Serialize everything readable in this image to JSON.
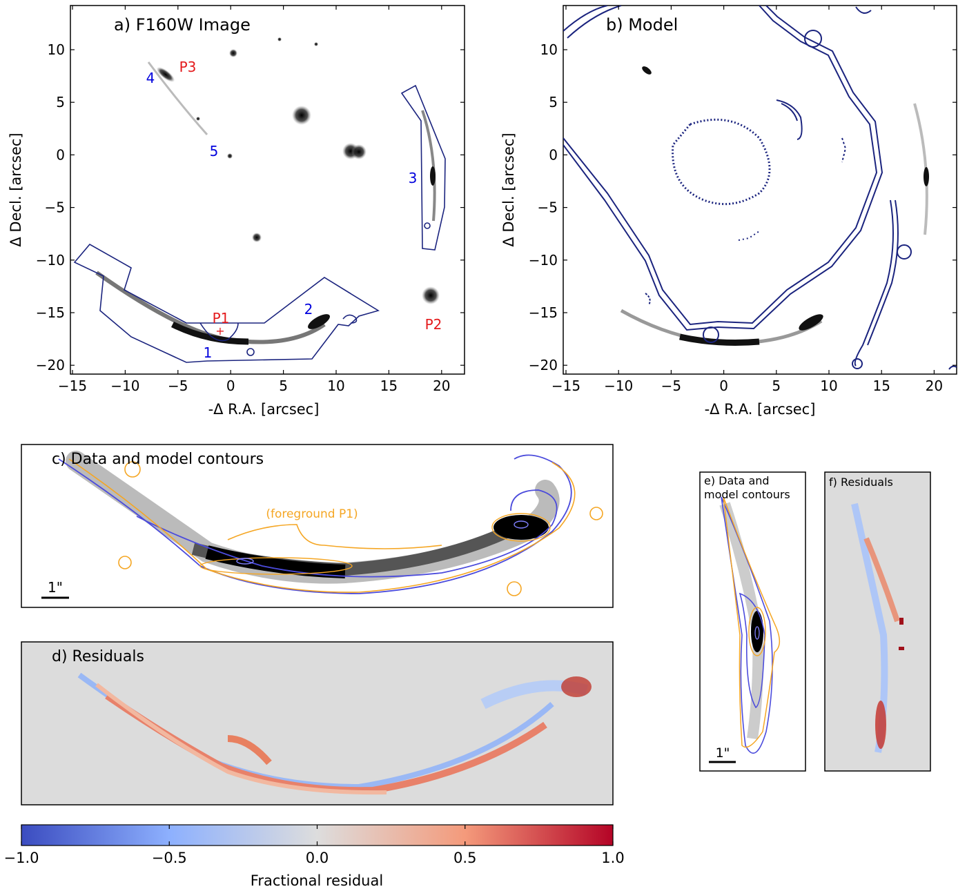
{
  "panel_a": {
    "title": "a) F160W Image",
    "xlabel": "-Δ R.A. [arcsec]",
    "ylabel": "Δ Decl. [arcsec]",
    "xticks": [
      "−15",
      "−10",
      "−5",
      "0",
      "5",
      "10",
      "15",
      "20"
    ],
    "yticks": [
      "10",
      "5",
      "0",
      "−5",
      "−10",
      "−15",
      "−20"
    ],
    "labels": {
      "p1": "P1",
      "p2": "P2",
      "p3": "P3",
      "n1": "1",
      "n2": "2",
      "n3": "3",
      "n4": "4",
      "n5": "5"
    }
  },
  "panel_b": {
    "title": "b) Model",
    "xlabel": "-Δ R.A. [arcsec]",
    "ylabel": "Δ Decl. [arcsec]",
    "xticks": [
      "−15",
      "−10",
      "−5",
      "0",
      "5",
      "10",
      "15",
      "20"
    ],
    "yticks": [
      "10",
      "5",
      "0",
      "−5",
      "−10",
      "−15",
      "−20"
    ]
  },
  "panel_c": {
    "title": "c) Data and model contours",
    "annotation": "(foreground P1)",
    "scale": "1\""
  },
  "panel_d": {
    "title": "d) Residuals"
  },
  "panel_e": {
    "title_line1": "e) Data and",
    "title_line2": "model contours",
    "scale": "1\""
  },
  "panel_f": {
    "title": "f) Residuals"
  },
  "colorbar": {
    "label": "Fractional residual",
    "ticks": [
      "−1.0",
      "−0.5",
      "0.0",
      "0.5",
      "1.0"
    ],
    "colors": {
      "low": "#3b4cc0",
      "mid": "#dddddd",
      "high": "#b40426"
    }
  },
  "colors": {
    "contour_blue": "#1a237e",
    "data_orange": "#f5a623",
    "model_blue": "#4b4bdc",
    "label_red": "#e41a1c",
    "label_blue": "#0000dd"
  }
}
